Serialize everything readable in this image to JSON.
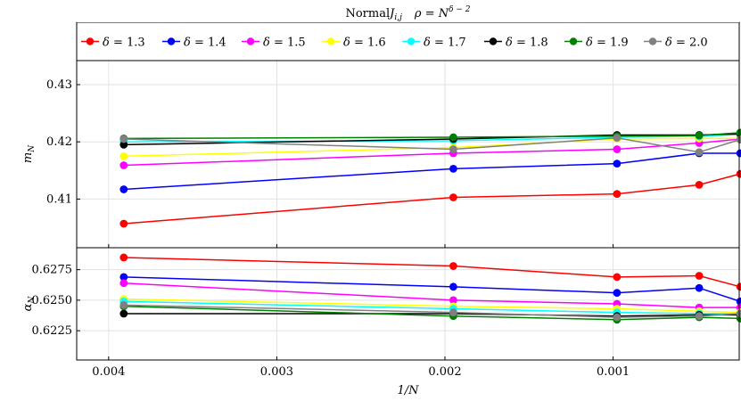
{
  "chart_data": {
    "type": "line",
    "title": "Normal J_{i,j}   ρ = N^{δ−2}",
    "title_parts": {
      "lhs": "Normal",
      "J": "J",
      "J_sub": "i,j",
      "rho": "ρ = N",
      "rho_sup": "δ − 2"
    },
    "xlabel": "1/N",
    "x_reversed": true,
    "xlim": [
      0.00419,
      0.00025
    ],
    "x_ticks": [
      0.004,
      0.003,
      0.002,
      0.001
    ],
    "x_tick_labels": [
      "0.004",
      "0.003",
      "0.002",
      "0.001"
    ],
    "x": [
      0.00391,
      0.00195,
      0.000977,
      0.000488,
      0.000244
    ],
    "grid": true,
    "legend_position": "top",
    "legend_prefix": "δ = ",
    "panels": [
      {
        "name": "m_N",
        "ylabel": "m",
        "ylabel_sub": "N",
        "ylim": [
          0.4015,
          0.4342
        ],
        "y_ticks": [
          0.41,
          0.42,
          0.43
        ],
        "y_tick_labels": [
          "0.41",
          "0.42",
          "0.43"
        ],
        "series": [
          {
            "name": "1.3",
            "color": "#ff0000",
            "values": [
              0.4057,
              0.4103,
              0.4109,
              0.4125,
              0.4144
            ]
          },
          {
            "name": "1.4",
            "color": "#0000ff",
            "values": [
              0.4117,
              0.4153,
              0.4162,
              0.418,
              0.418
            ]
          },
          {
            "name": "1.5",
            "color": "#ff00ff",
            "values": [
              0.4159,
              0.418,
              0.4187,
              0.4198,
              0.4205
            ]
          },
          {
            "name": "1.6",
            "color": "#ffff00",
            "values": [
              0.4175,
              0.419,
              0.4205,
              0.4206,
              0.4206
            ]
          },
          {
            "name": "1.7",
            "color": "#00ffff",
            "values": [
              0.42,
              0.4202,
              0.4208,
              0.421,
              0.4213
            ]
          },
          {
            "name": "1.8",
            "color": "#000000",
            "values": [
              0.4195,
              0.4205,
              0.4212,
              0.4212,
              0.4214
            ]
          },
          {
            "name": "1.9",
            "color": "#008000",
            "values": [
              0.4206,
              0.4208,
              0.421,
              0.4211,
              0.4216
            ]
          },
          {
            "name": "2.0",
            "color": "#808080",
            "values": [
              0.4205,
              0.4187,
              0.4207,
              0.4182,
              0.4204
            ]
          }
        ]
      },
      {
        "name": "alpha_N",
        "ylabel": "α",
        "ylabel_sub": "N",
        "ylim": [
          0.6201,
          0.6293
        ],
        "y_ticks": [
          0.6225,
          0.625,
          0.6275
        ],
        "y_tick_labels": [
          "0.6225",
          "0.6250",
          "0.6275"
        ],
        "series": [
          {
            "name": "1.3",
            "color": "#ff0000",
            "values": [
              0.6285,
              0.6278,
              0.6269,
              0.627,
              0.6261
            ]
          },
          {
            "name": "1.4",
            "color": "#0000ff",
            "values": [
              0.6269,
              0.6261,
              0.6256,
              0.626,
              0.6249
            ]
          },
          {
            "name": "1.5",
            "color": "#ff00ff",
            "values": [
              0.6264,
              0.625,
              0.6247,
              0.6244,
              0.6244
            ]
          },
          {
            "name": "1.6",
            "color": "#ffff00",
            "values": [
              0.6251,
              0.6245,
              0.6243,
              0.6241,
              0.624
            ]
          },
          {
            "name": "1.7",
            "color": "#00ffff",
            "values": [
              0.6249,
              0.6243,
              0.624,
              0.6239,
              0.6239
            ]
          },
          {
            "name": "1.8",
            "color": "#000000",
            "values": [
              0.6239,
              0.6239,
              0.6237,
              0.6238,
              0.6238
            ]
          },
          {
            "name": "1.9",
            "color": "#008000",
            "values": [
              0.6245,
              0.6237,
              0.6234,
              0.6236,
              0.6235
            ]
          },
          {
            "name": "2.0",
            "color": "#808080",
            "values": [
              0.6246,
              0.624,
              0.6236,
              0.6237,
              0.6239
            ]
          }
        ]
      }
    ]
  }
}
